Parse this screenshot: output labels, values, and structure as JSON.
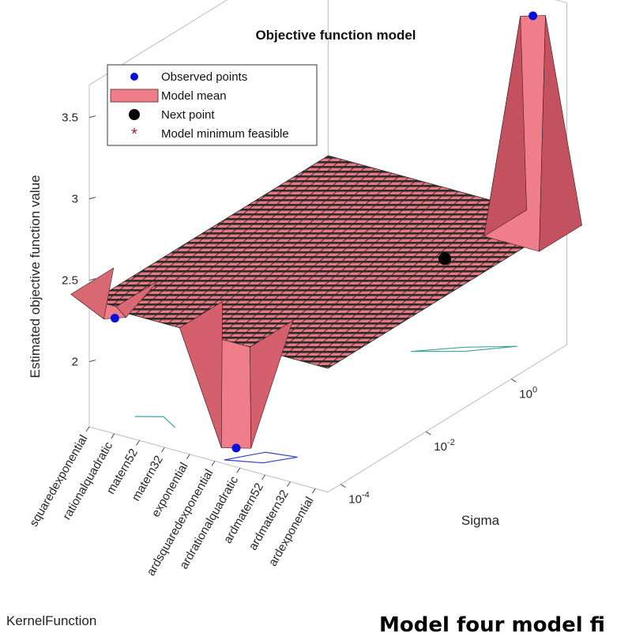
{
  "chart_data": {
    "type": "surface",
    "title": "Objective function model",
    "zlabel": "Estimated objective function value",
    "xlabel": "Sigma",
    "x_categorical_label": "KernelFunction",
    "z_ticks": [
      "2",
      "2.5",
      "3",
      "3.5"
    ],
    "zlim": [
      1.6,
      3.7
    ],
    "sigma_ticks": [
      "10^-4",
      "10^-2",
      "10^0"
    ],
    "kernel_functions": [
      "squaredexponential",
      "rationalquadratic",
      "matern52",
      "matern32",
      "exponential",
      "ardsquaredexponential",
      "ardrationalquadratic",
      "ardmatern52",
      "ardmatern32",
      "ardexponential"
    ],
    "legend": {
      "placement": "top-left",
      "entries": [
        "Observed points",
        "Model mean",
        "Next point",
        "Model minimum feasible"
      ]
    },
    "surface_baseline": 2.36,
    "observed_points": [
      {
        "kernel": "squaredexponential",
        "sigma_log10": -3.7,
        "value": 2.17
      },
      {
        "kernel": "ardsquaredexponential",
        "sigma_log10": -3.8,
        "value": 1.6
      },
      {
        "kernel": "ardexponential",
        "sigma_log10": 0.8,
        "value": 3.68
      }
    ],
    "next_point": {
      "kernel": "ardrationalquadratic",
      "sigma_log10": 0.5,
      "value": 2.11
    },
    "colors": {
      "surface": "#f07d8a",
      "observed": "#0a10d8",
      "next": "#000000",
      "minimum": "#a02030",
      "contour": "#3aa3a0"
    }
  },
  "overlay": {
    "axis_name": "KernelFunction",
    "caption": "Model four model fi"
  }
}
